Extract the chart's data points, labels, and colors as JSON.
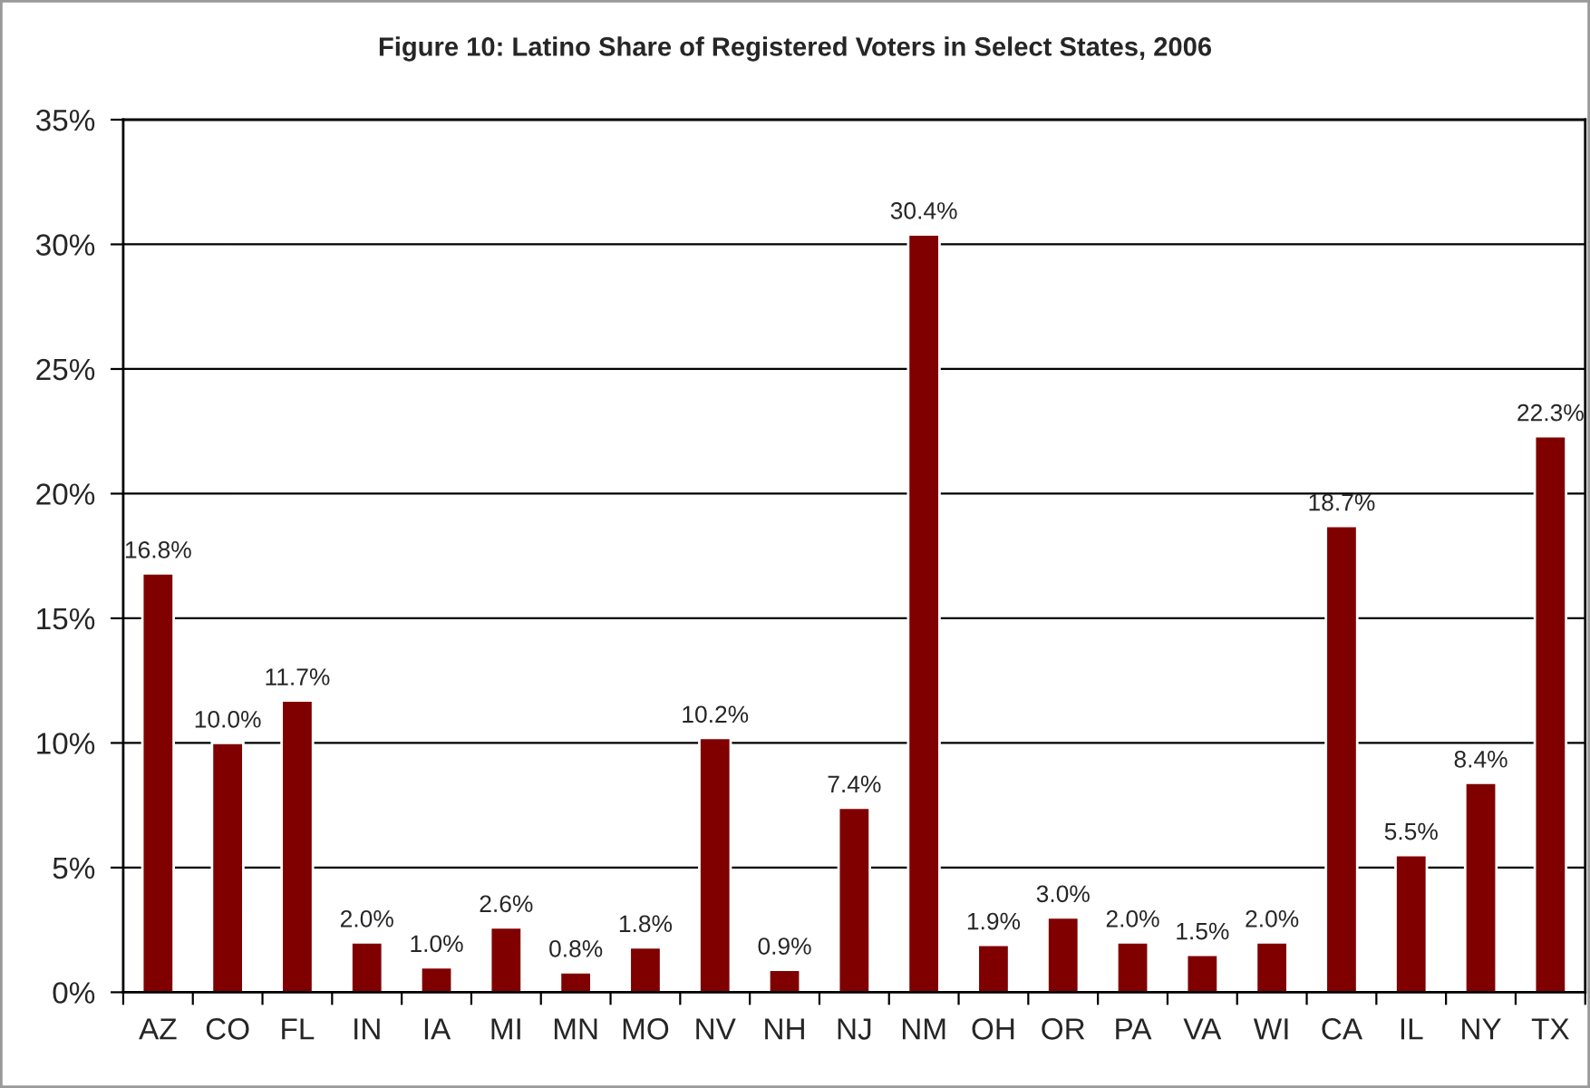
{
  "chart_data": {
    "type": "bar",
    "title": "Figure 10: Latino Share of Registered Voters in Select States, 2006",
    "categories": [
      "AZ",
      "CO",
      "FL",
      "IN",
      "IA",
      "MI",
      "MN",
      "MO",
      "NV",
      "NH",
      "NJ",
      "NM",
      "OH",
      "OR",
      "PA",
      "VA",
      "WI",
      "CA",
      "IL",
      "NY",
      "TX"
    ],
    "values": [
      16.8,
      10.0,
      11.7,
      2.0,
      1.0,
      2.6,
      0.8,
      1.8,
      10.2,
      0.9,
      7.4,
      30.4,
      1.9,
      3.0,
      2.0,
      1.5,
      2.0,
      18.7,
      5.5,
      8.4,
      22.3
    ],
    "value_labels": [
      "16.8%",
      "10.0%",
      "11.7%",
      "2.0%",
      "1.0%",
      "2.6%",
      "0.8%",
      "1.8%",
      "10.2%",
      "0.9%",
      "7.4%",
      "30.4%",
      "1.9%",
      "3.0%",
      "2.0%",
      "1.5%",
      "2.0%",
      "18.7%",
      "5.5%",
      "8.4%",
      "22.3%"
    ],
    "color": "#800000",
    "ylim": [
      0,
      35
    ],
    "yticks": [
      {
        "value": 0,
        "label": "0%"
      },
      {
        "value": 5,
        "label": "5%"
      },
      {
        "value": 10,
        "label": "10%"
      },
      {
        "value": 15,
        "label": "15%"
      },
      {
        "value": 20,
        "label": "20%"
      },
      {
        "value": 25,
        "label": "25%"
      },
      {
        "value": 30,
        "label": "30%"
      },
      {
        "value": 35,
        "label": "35%"
      }
    ],
    "grid": "y"
  }
}
